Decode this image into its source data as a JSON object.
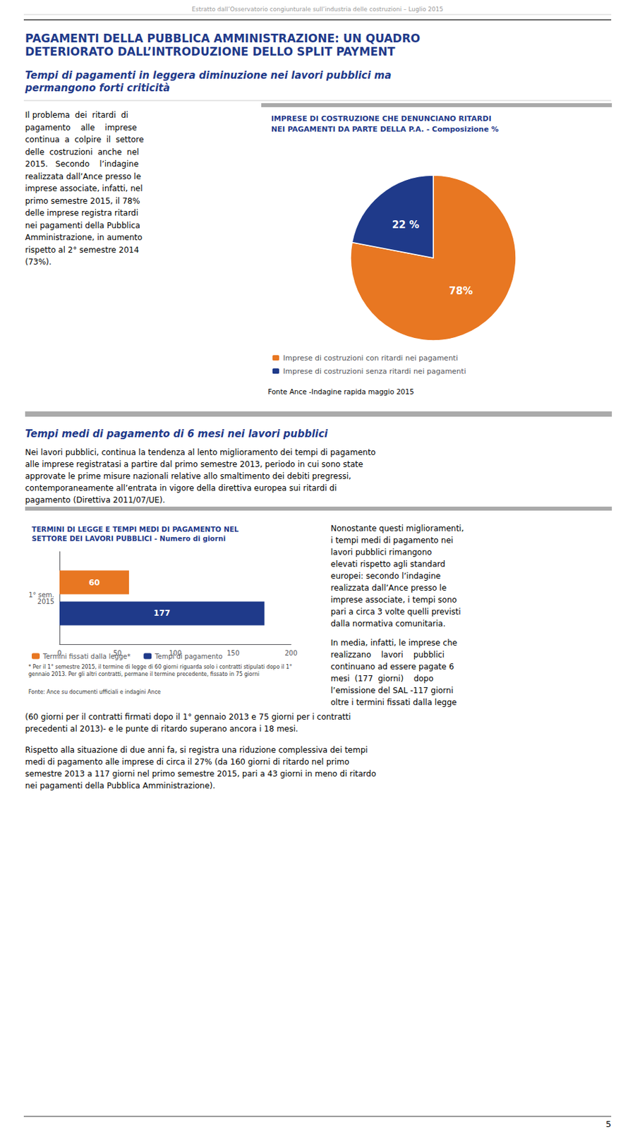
{
  "title": "PAGAMENTI DELLA PUBBLICA AMMINISTRAZIONE: UN QUADRO\nDETERIORATO DALL’INTRODUZIONE DELLO SPLIT PAYMENT",
  "subtitle": "Tempi di pagamenti in leggera diminuzione nei lavori pubblici ma\npermangono forti criticità",
  "annotations": [
    "Estratto dall’Osservatorio congiunturale sull’industria delle costruzioni – Luglio 2015",
    "Il problema  dei  ritardi  di\npagamento    alle    imprese\ncontinua  a  colpire  il  settore\ndelle  costruzioni  anche  nel\n2015.   Secondo    l’indagine\nrealizzata dall’Ance presso le\nimprese associate, infatti, nel\nprimo semestre 2015, il 78%\ndelle imprese registra ritardi\nnei pagamenti della Pubblica\nAmministrazione, in aumento\nrispetto al 2° semestre 2014\n(73%).",
    "Tempi medi di pagamento di 6 mesi nei lavori pubblici",
    "Nei lavori pubblici, continua la tendenza al lento miglioramento dei tempi di pagamento\nalle imprese registratasi a partire dal primo semestre 2013, periodo in cui sono state\napprovate le prime misure nazionali relative allo smaltimento dei debiti pregressi,\ncontemporaneamente all’entrata in vigore della direttiva europea sui ritardi di\npagamento (Direttiva 2011/07/UE).",
    "Nonostante questi miglioramenti,\ni tempi medi di pagamento nei\nlavori pubblici rimangono\nelevati rispetto agli standard\neuropei: secondo l’indagine\nrealizzata dall’Ance presso le\nimprese associate, i tempi sono\npari a circa 3 volte quelli previsti\ndalla normativa comunitaria.",
    "In media, infatti, le imprese che\nrealizzano    lavori    pubblici\ncontinuano ad essere pagate 6\nmesi  (177  giorni)    dopo\nl’emissione del SAL -117 giorni\noltre i termini fissati dalla legge",
    "(60 giorni per il contratti firmati dopo il 1° gennaio 2013 e 75 giorni per i contratti\nprecedenti al 2013)- e le punte di ritardo superano ancora i 18 mesi.",
    "Rispetto alla situazione di due anni fa, si registra una riduzione complessiva dei tempi\nmedi di pagamento alle imprese di circa il 27% (da 160 giorni di ritardo nel primo\nsemestre 2013 a 117 giorni nel primo semestre 2015, pari a 43 giorni in meno di ritardo\nnei pagamenti della Pubblica Amministrazione).",
    "5"
  ],
  "chart_data": [
    {
      "type": "pie",
      "title": "IMPRESE DI COSTRUZIONE CHE DENUNCIANO RITARDI\nNEI PAGAMENTI DA PARTE DELLA P.A. - Composizione %",
      "categories": [
        "Imprese di costruzioni con ritardi nei pagamenti",
        "Imprese di costruzioni senza ritardi nei pagamenti"
      ],
      "values": [
        78,
        22
      ],
      "value_labels": [
        "78%",
        "22 %"
      ],
      "colors": [
        "#E87722",
        "#1F3A8A"
      ],
      "data_labels": true,
      "legend": "bottom",
      "annotations": [
        "Fonte Ance -Indagine rapida maggio 2015"
      ]
    },
    {
      "type": "bar",
      "orientation": "horizontal",
      "title": "TERMINI DI LEGGE E TEMPI MEDI DI PAGAMENTO NEL\nSETTORE DEI LAVORI PUBBLICI - Numero di giorni",
      "categories": [
        "1° sem.\n2015"
      ],
      "series": [
        {
          "name": "Termini fissati dalla legge*",
          "color": "#E87722",
          "values": [
            60
          ]
        },
        {
          "name": "Tempi di pagamento",
          "color": "#1F3A8A",
          "values": [
            177
          ]
        }
      ],
      "xlim": [
        0,
        200
      ],
      "xticks": [
        0,
        50,
        100,
        150,
        200
      ],
      "grid": false,
      "data_labels": true,
      "legend": "bottom",
      "annotations": [
        "* Per il 1° semestre 2015, il termine di legge di 60 giorni riguarda solo i contratti stipulati dopo il 1° gennaio 2013. Per gli altri contratti, permane il termine precedente, fissato in 75 giorni",
        "Fonte: Ance su documenti ufficiali e indagini Ance"
      ]
    }
  ]
}
